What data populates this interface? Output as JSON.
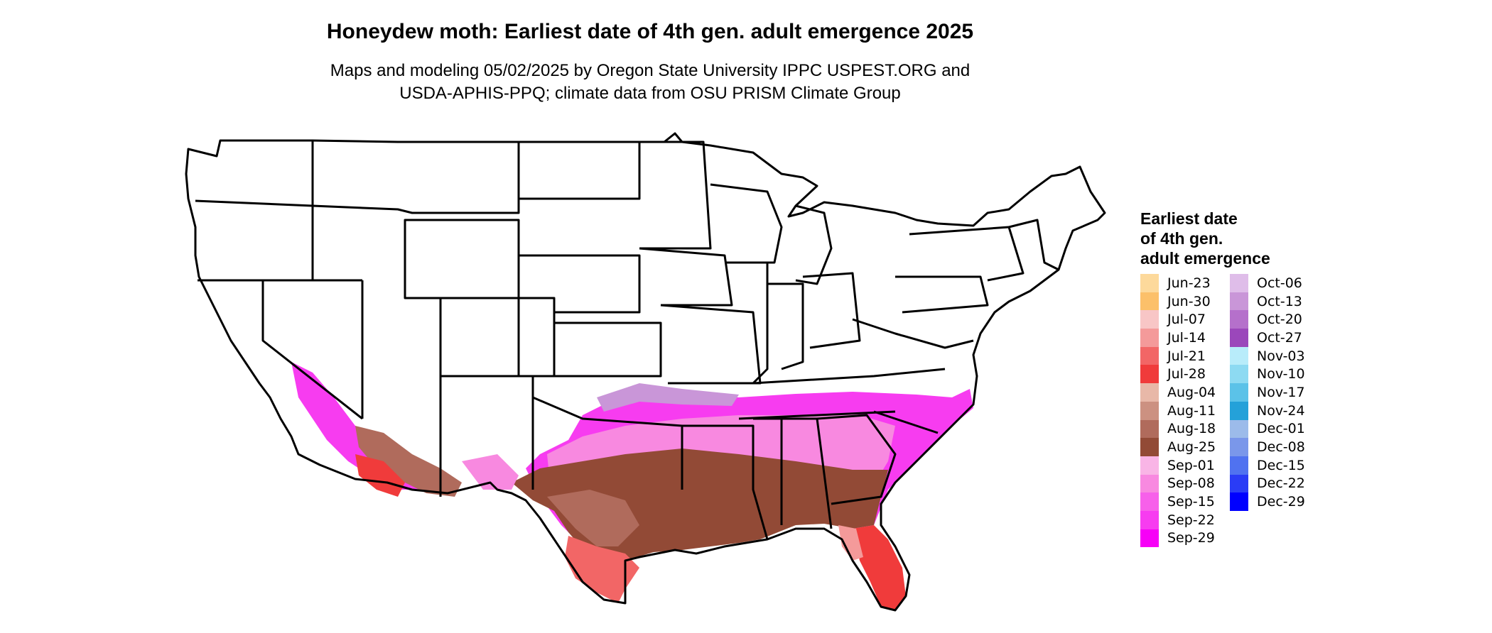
{
  "title": "Honeydew moth: Earliest date of 4th gen. adult emergence 2025",
  "subtitle_line1": "Maps and modeling 05/02/2025 by Oregon State University IPPC USPEST.ORG and",
  "subtitle_line2": "USDA-APHIS-PPQ; climate data from OSU PRISM Climate Group",
  "legend": {
    "title_line1": "Earliest date",
    "title_line2": "of 4th gen.",
    "title_line3": "adult emergence",
    "col1": [
      {
        "label": "Jun-23",
        "color": "#fdd99b"
      },
      {
        "label": "Jun-30",
        "color": "#fcc06a"
      },
      {
        "label": "Jul-07",
        "color": "#f8c6c6"
      },
      {
        "label": "Jul-14",
        "color": "#f49a9a"
      },
      {
        "label": "Jul-21",
        "color": "#f26666"
      },
      {
        "label": "Jul-28",
        "color": "#f03b3b"
      },
      {
        "label": "Aug-04",
        "color": "#e8b8a8"
      },
      {
        "label": "Aug-11",
        "color": "#cc9181"
      },
      {
        "label": "Aug-18",
        "color": "#b06b5c"
      },
      {
        "label": "Aug-25",
        "color": "#924a36"
      },
      {
        "label": "Sep-01",
        "color": "#f9b5e6"
      },
      {
        "label": "Sep-08",
        "color": "#f889e0"
      },
      {
        "label": "Sep-15",
        "color": "#f760ea"
      },
      {
        "label": "Sep-22",
        "color": "#f73cf0"
      },
      {
        "label": "Sep-29",
        "color": "#f700f7"
      }
    ],
    "col2": [
      {
        "label": "Oct-06",
        "color": "#dfbde9"
      },
      {
        "label": "Oct-13",
        "color": "#c996d8"
      },
      {
        "label": "Oct-20",
        "color": "#b570cb"
      },
      {
        "label": "Oct-27",
        "color": "#9b47bb"
      },
      {
        "label": "Nov-03",
        "color": "#b8ecfa"
      },
      {
        "label": "Nov-10",
        "color": "#8ddaf2"
      },
      {
        "label": "Nov-17",
        "color": "#5bc2e8"
      },
      {
        "label": "Nov-24",
        "color": "#24a1d9"
      },
      {
        "label": "Dec-01",
        "color": "#9cbbea"
      },
      {
        "label": "Dec-08",
        "color": "#7a97ea"
      },
      {
        "label": "Dec-15",
        "color": "#5072f0"
      },
      {
        "label": "Dec-22",
        "color": "#2a3cf6"
      },
      {
        "label": "Dec-29",
        "color": "#0000ff"
      }
    ]
  }
}
